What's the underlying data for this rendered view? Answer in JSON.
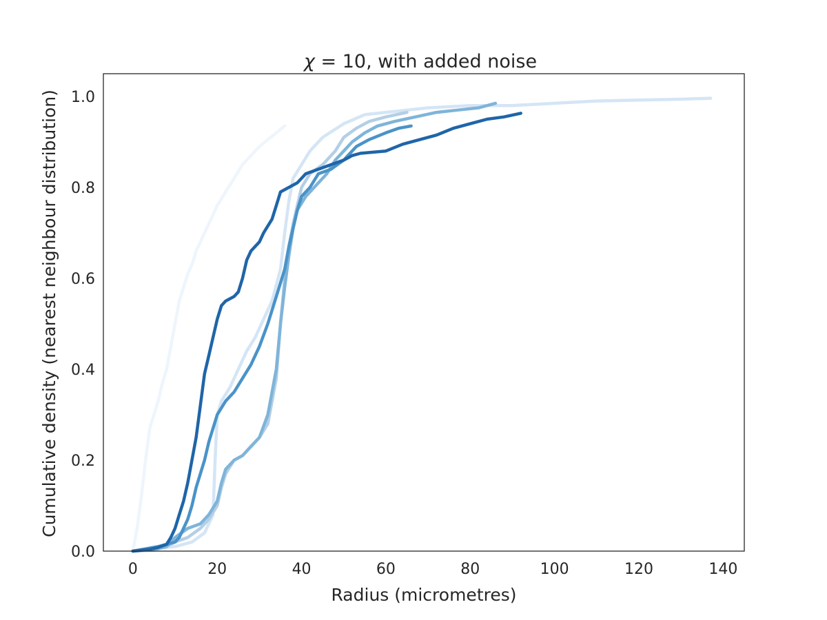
{
  "chart_data": {
    "type": "line",
    "title_symbol": "χ",
    "title_eq": " = 10",
    "title_rest": ", with added noise",
    "xlabel": "Radius (micrometres)",
    "ylabel": "Cumulative density (nearest neighbour distribution)",
    "xlim": [
      -7,
      145
    ],
    "ylim": [
      0,
      1.05
    ],
    "xticks": [
      0,
      20,
      40,
      60,
      80,
      100,
      120,
      140
    ],
    "yticks": [
      0.0,
      0.2,
      0.4,
      0.6,
      0.8,
      1.0
    ],
    "xtick_labels": [
      "0",
      "20",
      "40",
      "60",
      "80",
      "100",
      "120",
      "140"
    ],
    "ytick_labels": [
      "0.0",
      "0.2",
      "0.4",
      "0.6",
      "0.8",
      "1.0"
    ],
    "grid": false,
    "series": [
      {
        "color": "#eef5fc",
        "points": [
          [
            0,
            0
          ],
          [
            1,
            0.05
          ],
          [
            2,
            0.12
          ],
          [
            3,
            0.2
          ],
          [
            4,
            0.27
          ],
          [
            5,
            0.3
          ],
          [
            6,
            0.33
          ],
          [
            7,
            0.37
          ],
          [
            8,
            0.4
          ],
          [
            9,
            0.45
          ],
          [
            10,
            0.5
          ],
          [
            11,
            0.55
          ],
          [
            12,
            0.58
          ],
          [
            13,
            0.61
          ],
          [
            14,
            0.63
          ],
          [
            15,
            0.66
          ],
          [
            16,
            0.68
          ],
          [
            17,
            0.7
          ],
          [
            18,
            0.72
          ],
          [
            19,
            0.74
          ],
          [
            20,
            0.76
          ],
          [
            22,
            0.79
          ],
          [
            24,
            0.82
          ],
          [
            26,
            0.85
          ],
          [
            28,
            0.87
          ],
          [
            30,
            0.89
          ],
          [
            32,
            0.905
          ],
          [
            34,
            0.92
          ],
          [
            36,
            0.935
          ]
        ]
      },
      {
        "color": "#d4e5f5",
        "points": [
          [
            0,
            0
          ],
          [
            5,
            0.005
          ],
          [
            10,
            0.01
          ],
          [
            14,
            0.02
          ],
          [
            17,
            0.04
          ],
          [
            19,
            0.08
          ],
          [
            19.5,
            0.2
          ],
          [
            20,
            0.3
          ],
          [
            21,
            0.33
          ],
          [
            23,
            0.36
          ],
          [
            25,
            0.4
          ],
          [
            27,
            0.44
          ],
          [
            29,
            0.47
          ],
          [
            31,
            0.51
          ],
          [
            33,
            0.55
          ],
          [
            35,
            0.62
          ],
          [
            36,
            0.7
          ],
          [
            37,
            0.77
          ],
          [
            38,
            0.82
          ],
          [
            40,
            0.85
          ],
          [
            42,
            0.88
          ],
          [
            45,
            0.91
          ],
          [
            50,
            0.94
          ],
          [
            55,
            0.96
          ],
          [
            60,
            0.965
          ],
          [
            65,
            0.97
          ],
          [
            70,
            0.975
          ],
          [
            80,
            0.98
          ],
          [
            90,
            0.98
          ],
          [
            100,
            0.985
          ],
          [
            110,
            0.99
          ],
          [
            120,
            0.992
          ],
          [
            130,
            0.994
          ],
          [
            137,
            0.996
          ]
        ]
      },
      {
        "color": "#b3cfe6",
        "points": [
          [
            0,
            0
          ],
          [
            5,
            0.002
          ],
          [
            8,
            0.01
          ],
          [
            10,
            0.02
          ],
          [
            13,
            0.03
          ],
          [
            16,
            0.05
          ],
          [
            18,
            0.07
          ],
          [
            20,
            0.1
          ],
          [
            21,
            0.14
          ],
          [
            22,
            0.17
          ],
          [
            24,
            0.2
          ],
          [
            26,
            0.21
          ],
          [
            28,
            0.23
          ],
          [
            30,
            0.25
          ],
          [
            32,
            0.28
          ],
          [
            34,
            0.38
          ],
          [
            35,
            0.5
          ],
          [
            36,
            0.6
          ],
          [
            37,
            0.67
          ],
          [
            38,
            0.72
          ],
          [
            39,
            0.76
          ],
          [
            40,
            0.8
          ],
          [
            42,
            0.83
          ],
          [
            45,
            0.85
          ],
          [
            48,
            0.88
          ],
          [
            50,
            0.91
          ],
          [
            53,
            0.93
          ],
          [
            56,
            0.945
          ],
          [
            60,
            0.955
          ],
          [
            65,
            0.965
          ]
        ]
      },
      {
        "color": "#7fb4d9",
        "points": [
          [
            0,
            0
          ],
          [
            5,
            0.004
          ],
          [
            8,
            0.01
          ],
          [
            10,
            0.03
          ],
          [
            13,
            0.05
          ],
          [
            16,
            0.06
          ],
          [
            18,
            0.08
          ],
          [
            20,
            0.11
          ],
          [
            21,
            0.15
          ],
          [
            22,
            0.18
          ],
          [
            24,
            0.2
          ],
          [
            26,
            0.21
          ],
          [
            28,
            0.23
          ],
          [
            30,
            0.25
          ],
          [
            32,
            0.3
          ],
          [
            34,
            0.4
          ],
          [
            35,
            0.5
          ],
          [
            36,
            0.58
          ],
          [
            37,
            0.65
          ],
          [
            38,
            0.71
          ],
          [
            39,
            0.75
          ],
          [
            41,
            0.78
          ],
          [
            43,
            0.8
          ],
          [
            46,
            0.83
          ],
          [
            48,
            0.86
          ],
          [
            50,
            0.88
          ],
          [
            52,
            0.9
          ],
          [
            55,
            0.92
          ],
          [
            58,
            0.935
          ],
          [
            62,
            0.945
          ],
          [
            67,
            0.955
          ],
          [
            72,
            0.965
          ],
          [
            77,
            0.97
          ],
          [
            82,
            0.975
          ],
          [
            86,
            0.985
          ]
        ]
      },
      {
        "color": "#4a93c8",
        "points": [
          [
            0,
            0
          ],
          [
            3,
            0.005
          ],
          [
            6,
            0.01
          ],
          [
            8,
            0.015
          ],
          [
            10,
            0.02
          ],
          [
            11,
            0.03
          ],
          [
            12,
            0.05
          ],
          [
            13,
            0.07
          ],
          [
            14,
            0.1
          ],
          [
            15,
            0.14
          ],
          [
            16,
            0.17
          ],
          [
            17,
            0.2
          ],
          [
            18,
            0.24
          ],
          [
            19,
            0.27
          ],
          [
            20,
            0.3
          ],
          [
            22,
            0.33
          ],
          [
            24,
            0.35
          ],
          [
            26,
            0.38
          ],
          [
            28,
            0.41
          ],
          [
            30,
            0.45
          ],
          [
            32,
            0.5
          ],
          [
            34,
            0.56
          ],
          [
            36,
            0.62
          ],
          [
            37,
            0.67
          ],
          [
            38,
            0.71
          ],
          [
            39,
            0.75
          ],
          [
            40,
            0.78
          ],
          [
            42,
            0.8
          ],
          [
            44,
            0.83
          ],
          [
            47,
            0.84
          ],
          [
            50,
            0.86
          ],
          [
            53,
            0.89
          ],
          [
            56,
            0.905
          ],
          [
            60,
            0.92
          ],
          [
            63,
            0.93
          ],
          [
            66,
            0.935
          ]
        ]
      },
      {
        "color": "#1f65a8",
        "points": [
          [
            0,
            0
          ],
          [
            4,
            0.004
          ],
          [
            6,
            0.008
          ],
          [
            8,
            0.015
          ],
          [
            9,
            0.03
          ],
          [
            10,
            0.05
          ],
          [
            11,
            0.08
          ],
          [
            12,
            0.11
          ],
          [
            13,
            0.15
          ],
          [
            14,
            0.2
          ],
          [
            15,
            0.25
          ],
          [
            16,
            0.32
          ],
          [
            17,
            0.39
          ],
          [
            18,
            0.43
          ],
          [
            19,
            0.47
          ],
          [
            20,
            0.51
          ],
          [
            21,
            0.54
          ],
          [
            22,
            0.55
          ],
          [
            24,
            0.56
          ],
          [
            25,
            0.57
          ],
          [
            26,
            0.6
          ],
          [
            27,
            0.64
          ],
          [
            28,
            0.66
          ],
          [
            30,
            0.68
          ],
          [
            31,
            0.7
          ],
          [
            33,
            0.73
          ],
          [
            34,
            0.76
          ],
          [
            35,
            0.79
          ],
          [
            37,
            0.8
          ],
          [
            39,
            0.81
          ],
          [
            41,
            0.83
          ],
          [
            44,
            0.84
          ],
          [
            47,
            0.85
          ],
          [
            50,
            0.86
          ],
          [
            52,
            0.87
          ],
          [
            54,
            0.875
          ],
          [
            60,
            0.88
          ],
          [
            64,
            0.895
          ],
          [
            68,
            0.905
          ],
          [
            72,
            0.915
          ],
          [
            76,
            0.93
          ],
          [
            80,
            0.94
          ],
          [
            84,
            0.95
          ],
          [
            88,
            0.955
          ],
          [
            92,
            0.963
          ]
        ]
      }
    ]
  }
}
